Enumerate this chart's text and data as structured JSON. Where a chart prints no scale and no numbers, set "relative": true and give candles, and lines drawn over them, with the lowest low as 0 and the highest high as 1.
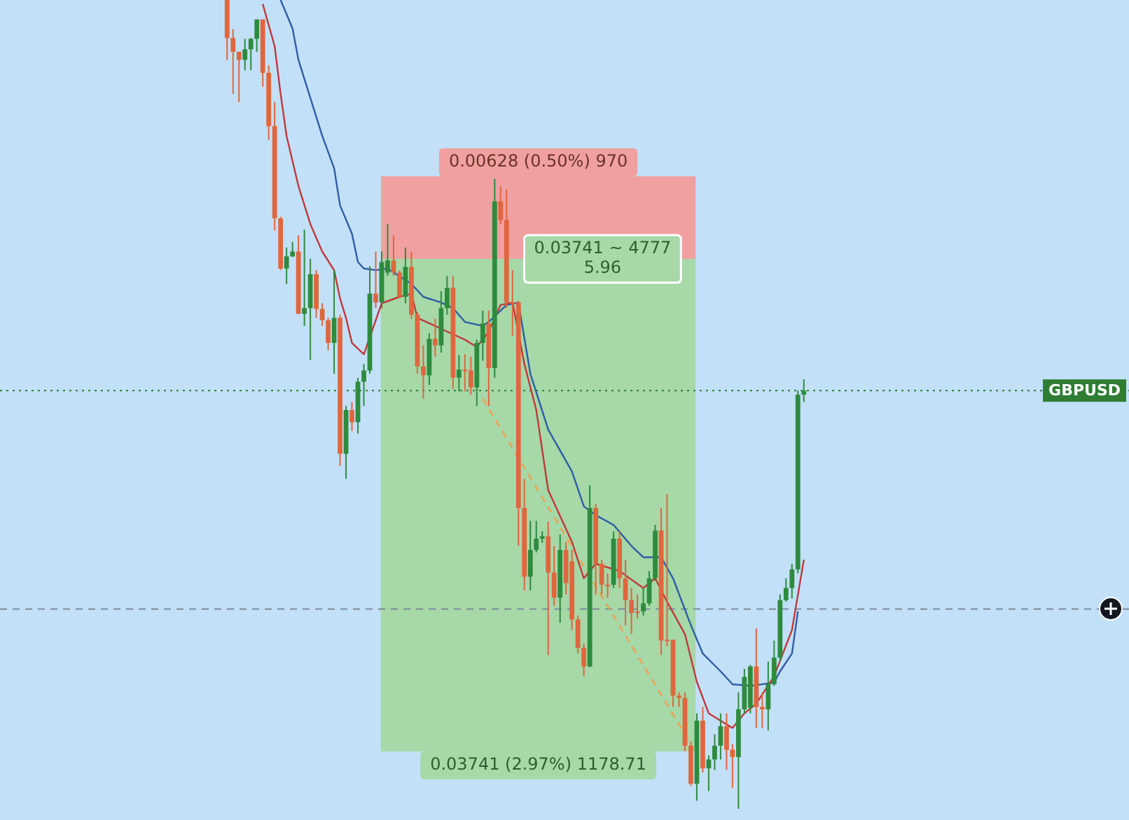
{
  "chart_data": {
    "type": "candlestick",
    "relative": true,
    "tick_labels": false,
    "legend": false,
    "marker": "none",
    "categories": [
      null,
      null,
      null,
      null,
      null,
      null,
      null,
      null,
      null,
      null,
      null,
      null,
      null,
      null,
      null,
      null,
      null,
      null,
      null,
      null,
      null,
      null,
      null,
      null,
      null,
      null,
      null,
      null,
      null,
      null,
      null,
      null,
      null,
      null,
      null,
      null,
      null,
      null,
      null,
      null,
      null,
      null,
      null,
      null,
      null,
      null,
      null,
      null,
      null,
      null,
      null,
      null,
      null,
      null,
      null,
      null,
      null,
      null,
      null,
      null,
      null,
      null,
      null,
      null,
      null,
      null,
      null,
      null,
      null,
      null,
      null,
      null,
      null,
      null,
      null,
      null,
      null,
      null,
      null,
      null,
      null,
      null,
      null,
      null,
      null,
      null,
      null,
      null,
      null,
      null,
      null,
      null,
      null,
      null,
      null,
      null,
      null,
      null
    ],
    "ohlc": [
      [
        1.0,
        1.0,
        0.926,
        0.953
      ],
      [
        0.953,
        0.964,
        0.884,
        0.936
      ],
      [
        0.936,
        0.936,
        0.874,
        0.926
      ],
      [
        0.926,
        0.952,
        0.913,
        0.939
      ],
      [
        0.939,
        0.953,
        0.913,
        0.952
      ],
      [
        0.952,
        0.976,
        0.936,
        0.976
      ],
      [
        0.976,
        0.976,
        0.893,
        0.91
      ],
      [
        0.91,
        0.919,
        0.827,
        0.844
      ],
      [
        0.844,
        0.874,
        0.715,
        0.73
      ],
      [
        0.73,
        0.732,
        0.666,
        0.668
      ],
      [
        0.668,
        0.694,
        0.649,
        0.683
      ],
      [
        0.683,
        0.701,
        0.682,
        0.689
      ],
      [
        0.689,
        0.709,
        0.612,
        0.612
      ],
      [
        0.612,
        0.716,
        0.597,
        0.619
      ],
      [
        0.619,
        0.68,
        0.555,
        0.661
      ],
      [
        0.661,
        0.666,
        0.607,
        0.618
      ],
      [
        0.618,
        0.625,
        0.597,
        0.604
      ],
      [
        0.604,
        0.607,
        0.567,
        0.576
      ],
      [
        0.576,
        0.666,
        0.538,
        0.607
      ],
      [
        0.607,
        0.611,
        0.424,
        0.439
      ],
      [
        0.439,
        0.498,
        0.408,
        0.493
      ],
      [
        0.493,
        0.503,
        0.467,
        0.478
      ],
      [
        0.478,
        0.533,
        0.464,
        0.528
      ],
      [
        0.528,
        0.55,
        0.498,
        0.542
      ],
      [
        0.542,
        0.671,
        0.538,
        0.637
      ],
      [
        0.637,
        0.689,
        0.619,
        0.626
      ],
      [
        0.626,
        0.689,
        0.619,
        0.676
      ],
      [
        0.663,
        0.723,
        0.659,
        0.678
      ],
      [
        0.678,
        0.709,
        0.659,
        0.663
      ],
      [
        0.663,
        0.666,
        0.631,
        0.633
      ],
      [
        0.633,
        0.694,
        0.625,
        0.67
      ],
      [
        0.67,
        0.689,
        0.606,
        0.611
      ],
      [
        0.611,
        0.614,
        0.538,
        0.547
      ],
      [
        0.547,
        0.573,
        0.507,
        0.536
      ],
      [
        0.536,
        0.588,
        0.524,
        0.581
      ],
      [
        0.581,
        0.606,
        0.559,
        0.573
      ],
      [
        0.573,
        0.64,
        0.564,
        0.619
      ],
      [
        0.619,
        0.659,
        0.611,
        0.644
      ],
      [
        0.644,
        0.659,
        0.519,
        0.533
      ],
      [
        0.533,
        0.561,
        0.516,
        0.543
      ],
      [
        0.543,
        0.562,
        0.516,
        0.542
      ],
      [
        0.542,
        0.559,
        0.512,
        0.521
      ],
      [
        0.521,
        0.58,
        0.498,
        0.576
      ],
      [
        0.576,
        0.616,
        0.554,
        0.6
      ],
      [
        0.6,
        0.616,
        0.498,
        0.545
      ],
      [
        0.545,
        0.779,
        0.533,
        0.751
      ],
      [
        0.751,
        0.77,
        0.723,
        0.728
      ],
      [
        0.728,
        0.766,
        0.619,
        0.626
      ],
      [
        0.626,
        0.666,
        0.585,
        0.625
      ],
      [
        0.626,
        0.628,
        0.325,
        0.372
      ],
      [
        0.372,
        0.408,
        0.27,
        0.287
      ],
      [
        0.287,
        0.356,
        0.27,
        0.32
      ],
      [
        0.32,
        0.356,
        0.317,
        0.334
      ],
      [
        0.334,
        0.343,
        0.329,
        0.337
      ],
      [
        0.337,
        0.355,
        0.19,
        0.292
      ],
      [
        0.292,
        0.325,
        0.251,
        0.261
      ],
      [
        0.261,
        0.339,
        0.23,
        0.32
      ],
      [
        0.32,
        0.33,
        0.265,
        0.279
      ],
      [
        0.306,
        0.32,
        0.221,
        0.234
      ],
      [
        0.234,
        0.239,
        0.192,
        0.199
      ],
      [
        0.199,
        0.204,
        0.164,
        0.176
      ],
      [
        0.176,
        0.4,
        0.175,
        0.372
      ],
      [
        0.372,
        0.377,
        0.265,
        0.303
      ],
      [
        0.303,
        0.308,
        0.265,
        0.277
      ],
      [
        0.277,
        0.291,
        0.261,
        0.275
      ],
      [
        0.277,
        0.343,
        0.273,
        0.334
      ],
      [
        0.334,
        0.343,
        0.273,
        0.285
      ],
      [
        0.285,
        0.308,
        0.227,
        0.258
      ],
      [
        0.258,
        0.273,
        0.216,
        0.242
      ],
      [
        0.244,
        0.265,
        0.235,
        0.242
      ],
      [
        0.244,
        0.273,
        0.239,
        0.254
      ],
      [
        0.254,
        0.294,
        0.251,
        0.285
      ],
      [
        0.285,
        0.351,
        0.282,
        0.344
      ],
      [
        0.344,
        0.372,
        0.19,
        0.208
      ],
      [
        0.209,
        0.389,
        0.201,
        0.208
      ],
      [
        0.209,
        0.209,
        0.126,
        0.14
      ],
      [
        0.14,
        0.144,
        0.126,
        0.137
      ],
      [
        0.137,
        0.144,
        0.071,
        0.078
      ],
      [
        0.078,
        0.083,
        0.028,
        0.031
      ],
      [
        0.031,
        0.118,
        0.01,
        0.109
      ],
      [
        0.109,
        0.126,
        0.045,
        0.05
      ],
      [
        0.05,
        0.066,
        0.022,
        0.061
      ],
      [
        0.061,
        0.092,
        0.048,
        0.078
      ],
      [
        0.078,
        0.118,
        0.061,
        0.102
      ],
      [
        0.102,
        0.118,
        0.048,
        0.073
      ],
      [
        0.073,
        0.08,
        0.026,
        0.064
      ],
      [
        0.064,
        0.144,
        0.0,
        0.123
      ],
      [
        0.123,
        0.173,
        0.118,
        0.163
      ],
      [
        0.125,
        0.178,
        0.118,
        0.176
      ],
      [
        0.176,
        0.223,
        0.1,
        0.126
      ],
      [
        0.126,
        0.144,
        0.1,
        0.123
      ],
      [
        0.123,
        0.182,
        0.097,
        0.154
      ],
      [
        0.154,
        0.208,
        0.152,
        0.187
      ],
      [
        0.187,
        0.265,
        0.183,
        0.258
      ],
      [
        0.258,
        0.285,
        0.256,
        0.273
      ],
      [
        0.273,
        0.303,
        0.26,
        0.296
      ],
      [
        0.296,
        0.517,
        0.291,
        0.512
      ],
      [
        0.512,
        0.531,
        0.503,
        0.517
      ]
    ],
    "colors": [
      "#e0663e",
      "#e0663e",
      "#e0663e",
      "#2e8b3e",
      "#2e8b3e",
      "#2e8b3e",
      "#e0663e",
      "#e0663e",
      "#e0663e",
      "#e0663e",
      "#2e8b3e",
      "#2e8b3e",
      "#e0663e",
      "#2e8b3e",
      "#2e8b3e",
      "#e0663e",
      "#e0663e",
      "#e0663e",
      "#2e8b3e",
      "#e0663e",
      "#2e8b3e",
      "#e0663e",
      "#2e8b3e",
      "#2e8b3e",
      "#2e8b3e",
      "#e0663e",
      "#2e8b3e",
      "#2e8b3e",
      "#e0663e",
      "#e0663e",
      "#2e8b3e",
      "#e0663e",
      "#e0663e",
      "#e0663e",
      "#2e8b3e",
      "#e0663e",
      "#2e8b3e",
      "#2e8b3e",
      "#e0663e",
      "#2e8b3e",
      "#e0663e",
      "#e0663e",
      "#2e8b3e",
      "#2e8b3e",
      "#e0663e",
      "#2e8b3e",
      "#e0663e",
      "#e0663e",
      "#e0663e",
      "#e0663e",
      "#e0663e",
      "#2e8b3e",
      "#2e8b3e",
      "#2e8b3e",
      "#e0663e",
      "#e0663e",
      "#2e8b3e",
      "#e0663e",
      "#e0663e",
      "#e0663e",
      "#e0663e",
      "#2e8b3e",
      "#e0663e",
      "#e0663e",
      "#e0663e",
      "#2e8b3e",
      "#e0663e",
      "#e0663e",
      "#e0663e",
      "#e0663e",
      "#2e8b3e",
      "#2e8b3e",
      "#2e8b3e",
      "#e0663e",
      "#e0663e",
      "#e0663e",
      "#e0663e",
      "#e0663e",
      "#e0663e",
      "#2e8b3e",
      "#e0663e",
      "#2e8b3e",
      "#2e8b3e",
      "#2e8b3e",
      "#e0663e",
      "#e0663e",
      "#2e8b3e",
      "#2e8b3e",
      "#2e8b3e",
      "#e0663e",
      "#e0663e",
      "#2e8b3e",
      "#2e8b3e",
      "#2e8b3e",
      "#2e8b3e",
      "#2e8b3e",
      "#2e8b3e",
      "#2e8b3e"
    ],
    "series": [
      {
        "type": "line",
        "color": "#c0393b",
        "values": [
          null,
          null,
          null,
          null,
          null,
          null,
          0.995,
          null,
          0.943,
          0.884,
          0.832,
          null,
          0.77,
          null,
          0.723,
          null,
          0.689,
          null,
          0.666,
          0.631,
          0.607,
          0.576,
          null,
          0.562,
          null,
          null,
          0.625,
          null,
          null,
          0.633,
          null,
          0.637,
          0.607,
          null,
          null,
          0.597,
          null,
          0.59,
          null,
          null,
          0.58,
          null,
          0.571,
          null,
          0.59,
          null,
          0.623,
          null,
          0.626,
          null,
          0.55,
          null,
          0.493,
          null,
          0.394,
          null,
          null,
          null,
          0.33,
          null,
          0.285,
          null,
          0.303,
          null,
          null,
          null,
          0.294,
          null,
          null,
          null,
          0.273,
          null,
          0.285,
          null,
          0.256,
          null,
          null,
          0.216,
          null,
          0.157,
          null,
          0.118,
          null,
          null,
          null,
          0.1,
          null,
          0.118,
          null,
          0.13,
          null,
          null,
          0.164,
          null,
          null,
          0.221,
          null,
          0.308
        ]
      },
      {
        "type": "line",
        "color": "#2f5da6",
        "values": [
          null,
          null,
          null,
          null,
          null,
          null,
          null,
          null,
          null,
          1.0,
          null,
          0.965,
          0.926,
          null,
          0.879,
          null,
          0.832,
          null,
          0.792,
          0.746,
          null,
          0.711,
          0.676,
          0.668,
          null,
          0.666,
          null,
          0.668,
          0.663,
          null,
          null,
          0.649,
          null,
          0.633,
          null,
          null,
          0.626,
          null,
          0.619,
          null,
          0.602,
          null,
          null,
          0.597,
          0.602,
          null,
          null,
          0.623,
          null,
          0.626,
          null,
          0.538,
          null,
          null,
          0.469,
          null,
          null,
          null,
          0.417,
          null,
          0.374,
          null,
          0.363,
          null,
          null,
          0.351,
          null,
          null,
          0.325,
          null,
          0.311,
          null,
          null,
          0.311,
          null,
          0.285,
          null,
          null,
          0.227,
          null,
          0.192,
          null,
          null,
          0.17,
          null,
          0.154,
          null,
          null,
          0.152,
          null,
          null,
          null,
          0.156,
          0.17,
          null,
          0.192,
          0.244,
          null
        ]
      },
      {
        "type": "line",
        "color": "#f0a050",
        "line_style": "dashed",
        "values": [
          null,
          null,
          null,
          null,
          null,
          null,
          null,
          null,
          null,
          null,
          null,
          null,
          null,
          null,
          null,
          null,
          null,
          null,
          null,
          null,
          null,
          null,
          null,
          null,
          null,
          null,
          null,
          null,
          null,
          null,
          null,
          null,
          null,
          null,
          null,
          null,
          null,
          null,
          null,
          null,
          null,
          null,
          null,
          0.507,
          null,
          null,
          null,
          null,
          null,
          null,
          null,
          null,
          null,
          null,
          null,
          null,
          null,
          null,
          null,
          null,
          null,
          null,
          null,
          null,
          null,
          null,
          null,
          null,
          null,
          null,
          null,
          null,
          null,
          null,
          null,
          null,
          null,
          null,
          0.08,
          null,
          null,
          null,
          null,
          null,
          null,
          null,
          null,
          null,
          null,
          null,
          null,
          null,
          null,
          null,
          null,
          null,
          null,
          null
        ]
      }
    ],
    "bands": [
      {
        "axis": "y",
        "from": 0.68,
        "to": 0.782,
        "color": "#f0a0a0"
      },
      {
        "axis": "y",
        "from": 0.071,
        "to": 0.68,
        "color": "#a6d8a8"
      }
    ],
    "ref_lines": [
      {
        "axis": "y",
        "value": 0.517,
        "label": "GBPUSD",
        "color": "#2e7d32",
        "line_style": "dotted"
      },
      {
        "axis": "y",
        "value": 0.247,
        "color": "#7d8b99",
        "line_style": "dashed"
      }
    ],
    "annotations": [
      {
        "text": "0.00628 (0.50%) 970",
        "y": 0.782
      },
      {
        "text": "0.03741 ~ 4777\n5.96",
        "y": 0.68
      },
      {
        "text": "0.03741 (2.97%) 1178.71",
        "y": 0.071
      }
    ]
  }
}
